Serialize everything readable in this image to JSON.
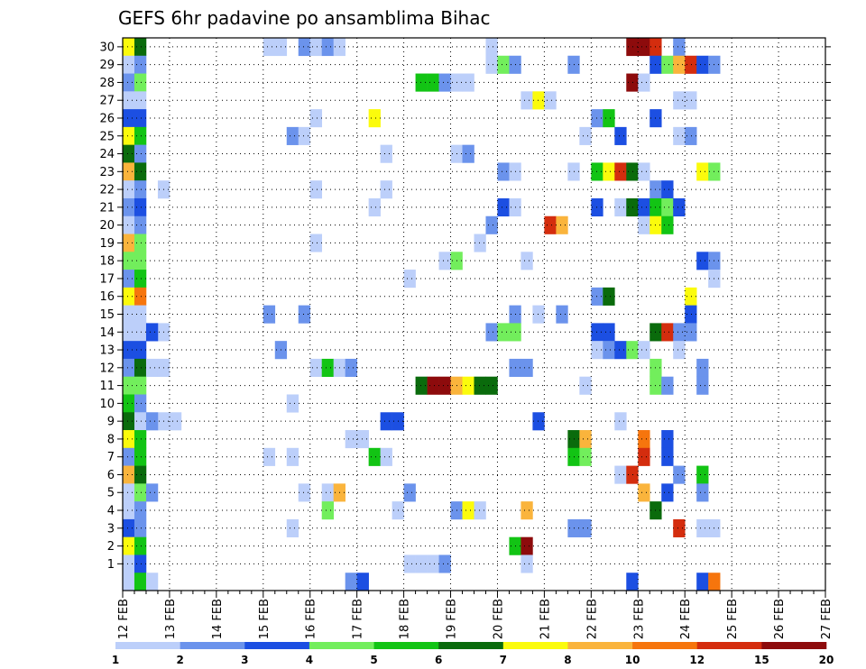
{
  "chart_data": {
    "type": "heatmap",
    "title": "GEFS 6hr padavine po ansamblima Bihac",
    "xlabel": "",
    "ylabel": "",
    "x_tick_labels": [
      "12 FEB",
      "13 FEB",
      "14 FEB",
      "15 FEB",
      "16 FEB",
      "17 FEB",
      "18 FEB",
      "19 FEB",
      "20 FEB",
      "21 FEB",
      "22 FEB",
      "23 FEB",
      "24 FEB",
      "25 FEB",
      "26 FEB",
      "27 FEB"
    ],
    "y_tick_labels": [
      "1",
      "2",
      "3",
      "4",
      "5",
      "6",
      "7",
      "8",
      "9",
      "10",
      "11",
      "12",
      "13",
      "14",
      "15",
      "16",
      "17",
      "18",
      "19",
      "20",
      "21",
      "22",
      "23",
      "24",
      "25",
      "26",
      "27",
      "28",
      "29",
      "30"
    ],
    "time_steps_per_day": 4,
    "members": 30,
    "grid": true,
    "colorbar": {
      "position": "bottom",
      "labels": [
        "1",
        "2",
        "3",
        "4",
        "5",
        "6",
        "7",
        "8",
        "10",
        "12",
        "15",
        "20"
      ],
      "colors": [
        "#bccffa",
        "#6b93ec",
        "#1c4fe2",
        "#72ee5c",
        "#12c414",
        "#0a6b0c",
        "#fbfb0c",
        "#fab43c",
        "#f6750d",
        "#d42d0e",
        "#8d0b0c"
      ]
    },
    "cells": [
      {
        "t": 0,
        "m": 30,
        "c": 6
      },
      {
        "t": 0,
        "m": 29,
        "c": 0
      },
      {
        "t": 0,
        "m": 28,
        "c": 1
      },
      {
        "t": 0,
        "m": 27,
        "c": 0
      },
      {
        "t": 0,
        "m": 26,
        "c": 2
      },
      {
        "t": 0,
        "m": 25,
        "c": 6
      },
      {
        "t": 0,
        "m": 24,
        "c": 5
      },
      {
        "t": 0,
        "m": 23,
        "c": 7
      },
      {
        "t": 0,
        "m": 22,
        "c": 0
      },
      {
        "t": 0,
        "m": 21,
        "c": 1
      },
      {
        "t": 0,
        "m": 20,
        "c": 0
      },
      {
        "t": 0,
        "m": 19,
        "c": 7
      },
      {
        "t": 0,
        "m": 18,
        "c": 3
      },
      {
        "t": 0,
        "m": 17,
        "c": 1
      },
      {
        "t": 0,
        "m": 16,
        "c": 6
      },
      {
        "t": 0,
        "m": 15,
        "c": 0
      },
      {
        "t": 0,
        "m": 14,
        "c": 0
      },
      {
        "t": 0,
        "m": 13,
        "c": 2
      },
      {
        "t": 0,
        "m": 12,
        "c": 1
      },
      {
        "t": 0,
        "m": 11,
        "c": 3
      },
      {
        "t": 0,
        "m": 10,
        "c": 4
      },
      {
        "t": 0,
        "m": 9,
        "c": 5
      },
      {
        "t": 0,
        "m": 8,
        "c": 6
      },
      {
        "t": 0,
        "m": 7,
        "c": 1
      },
      {
        "t": 0,
        "m": 6,
        "c": 7
      },
      {
        "t": 0,
        "m": 5,
        "c": 0
      },
      {
        "t": 0,
        "m": 4,
        "c": 0
      },
      {
        "t": 0,
        "m": 3,
        "c": 2
      },
      {
        "t": 0,
        "m": 2,
        "c": 6
      },
      {
        "t": 0,
        "m": 1,
        "c": 0
      },
      {
        "t": 0,
        "m": 0,
        "c": 0
      },
      {
        "t": 1,
        "m": 30,
        "c": 5
      },
      {
        "t": 1,
        "m": 29,
        "c": 1
      },
      {
        "t": 1,
        "m": 28,
        "c": 3
      },
      {
        "t": 1,
        "m": 27,
        "c": 0
      },
      {
        "t": 1,
        "m": 26,
        "c": 2
      },
      {
        "t": 1,
        "m": 25,
        "c": 4
      },
      {
        "t": 1,
        "m": 24,
        "c": 1
      },
      {
        "t": 1,
        "m": 23,
        "c": 5
      },
      {
        "t": 1,
        "m": 22,
        "c": 1
      },
      {
        "t": 1,
        "m": 21,
        "c": 2
      },
      {
        "t": 1,
        "m": 20,
        "c": 1
      },
      {
        "t": 1,
        "m": 19,
        "c": 3
      },
      {
        "t": 1,
        "m": 18,
        "c": 3
      },
      {
        "t": 1,
        "m": 17,
        "c": 4
      },
      {
        "t": 1,
        "m": 16,
        "c": 8
      },
      {
        "t": 1,
        "m": 15,
        "c": 0
      },
      {
        "t": 1,
        "m": 14,
        "c": 0
      },
      {
        "t": 1,
        "m": 13,
        "c": 2
      },
      {
        "t": 1,
        "m": 12,
        "c": 5
      },
      {
        "t": 1,
        "m": 11,
        "c": 3
      },
      {
        "t": 1,
        "m": 10,
        "c": 1
      },
      {
        "t": 1,
        "m": 9,
        "c": 0
      },
      {
        "t": 1,
        "m": 8,
        "c": 4
      },
      {
        "t": 1,
        "m": 7,
        "c": 4
      },
      {
        "t": 1,
        "m": 6,
        "c": 5
      },
      {
        "t": 1,
        "m": 5,
        "c": 3
      },
      {
        "t": 1,
        "m": 4,
        "c": 1
      },
      {
        "t": 1,
        "m": 3,
        "c": 1
      },
      {
        "t": 1,
        "m": 2,
        "c": 4
      },
      {
        "t": 1,
        "m": 1,
        "c": 2
      },
      {
        "t": 1,
        "m": 0,
        "c": 4
      },
      {
        "t": 2,
        "m": 0,
        "c": 0
      },
      {
        "t": 3,
        "m": 22,
        "c": 0
      },
      {
        "t": 3,
        "m": 14,
        "c": 0
      },
      {
        "t": 3,
        "m": 9,
        "c": 0
      },
      {
        "t": 2,
        "m": 14,
        "c": 2
      },
      {
        "t": 2,
        "m": 12,
        "c": 0
      },
      {
        "t": 3,
        "m": 12,
        "c": 0
      },
      {
        "t": 2,
        "m": 9,
        "c": 1
      },
      {
        "t": 4,
        "m": 9,
        "c": 0
      },
      {
        "t": 2,
        "m": 5,
        "c": 1
      },
      {
        "t": 12,
        "m": 30,
        "c": 0
      },
      {
        "t": 13,
        "m": 30,
        "c": 0
      },
      {
        "t": 12,
        "m": 15,
        "c": 1
      },
      {
        "t": 12,
        "m": 7,
        "c": 0
      },
      {
        "t": 13,
        "m": 13,
        "c": 1
      },
      {
        "t": 14,
        "m": 25,
        "c": 1
      },
      {
        "t": 14,
        "m": 10,
        "c": 0
      },
      {
        "t": 14,
        "m": 7,
        "c": 0
      },
      {
        "t": 14,
        "m": 3,
        "c": 0
      },
      {
        "t": 15,
        "m": 30,
        "c": 1
      },
      {
        "t": 15,
        "m": 25,
        "c": 0
      },
      {
        "t": 15,
        "m": 15,
        "c": 1
      },
      {
        "t": 15,
        "m": 5,
        "c": 0
      },
      {
        "t": 16,
        "m": 30,
        "c": 0
      },
      {
        "t": 16,
        "m": 26,
        "c": 0
      },
      {
        "t": 16,
        "m": 22,
        "c": 0
      },
      {
        "t": 16,
        "m": 19,
        "c": 0
      },
      {
        "t": 16,
        "m": 12,
        "c": 0
      },
      {
        "t": 17,
        "m": 30,
        "c": 1
      },
      {
        "t": 17,
        "m": 12,
        "c": 4
      },
      {
        "t": 17,
        "m": 5,
        "c": 0
      },
      {
        "t": 17,
        "m": 4,
        "c": 3
      },
      {
        "t": 18,
        "m": 30,
        "c": 0
      },
      {
        "t": 18,
        "m": 12,
        "c": 0
      },
      {
        "t": 18,
        "m": 5,
        "c": 7
      },
      {
        "t": 19,
        "m": 12,
        "c": 1
      },
      {
        "t": 19,
        "m": 8,
        "c": 0
      },
      {
        "t": 19,
        "m": 0,
        "c": 1
      },
      {
        "t": 20,
        "m": 8,
        "c": 0
      },
      {
        "t": 20,
        "m": 0,
        "c": 2
      },
      {
        "t": 21,
        "m": 26,
        "c": 6
      },
      {
        "t": 21,
        "m": 21,
        "c": 0
      },
      {
        "t": 21,
        "m": 7,
        "c": 4
      },
      {
        "t": 22,
        "m": 24,
        "c": 0
      },
      {
        "t": 22,
        "m": 22,
        "c": 0
      },
      {
        "t": 22,
        "m": 9,
        "c": 2
      },
      {
        "t": 22,
        "m": 7,
        "c": 0
      },
      {
        "t": 23,
        "m": 9,
        "c": 2
      },
      {
        "t": 23,
        "m": 4,
        "c": 0
      },
      {
        "t": 24,
        "m": 17,
        "c": 0
      },
      {
        "t": 24,
        "m": 5,
        "c": 1
      },
      {
        "t": 24,
        "m": 1,
        "c": 0
      },
      {
        "t": 25,
        "m": 28,
        "c": 4
      },
      {
        "t": 25,
        "m": 11,
        "c": 5
      },
      {
        "t": 25,
        "m": 1,
        "c": 0
      },
      {
        "t": 26,
        "m": 28,
        "c": 4
      },
      {
        "t": 26,
        "m": 11,
        "c": 10
      },
      {
        "t": 26,
        "m": 1,
        "c": 0
      },
      {
        "t": 27,
        "m": 28,
        "c": 1
      },
      {
        "t": 27,
        "m": 18,
        "c": 0
      },
      {
        "t": 27,
        "m": 11,
        "c": 10
      },
      {
        "t": 27,
        "m": 1,
        "c": 1
      },
      {
        "t": 28,
        "m": 28,
        "c": 0
      },
      {
        "t": 28,
        "m": 24,
        "c": 0
      },
      {
        "t": 28,
        "m": 18,
        "c": 3
      },
      {
        "t": 28,
        "m": 11,
        "c": 7
      },
      {
        "t": 28,
        "m": 4,
        "c": 1
      },
      {
        "t": 29,
        "m": 28,
        "c": 0
      },
      {
        "t": 29,
        "m": 24,
        "c": 1
      },
      {
        "t": 29,
        "m": 11,
        "c": 6
      },
      {
        "t": 29,
        "m": 4,
        "c": 6
      },
      {
        "t": 30,
        "m": 19,
        "c": 0
      },
      {
        "t": 30,
        "m": 11,
        "c": 5
      },
      {
        "t": 30,
        "m": 4,
        "c": 0
      },
      {
        "t": 31,
        "m": 30,
        "c": 0
      },
      {
        "t": 31,
        "m": 29,
        "c": 0
      },
      {
        "t": 31,
        "m": 20,
        "c": 1
      },
      {
        "t": 31,
        "m": 14,
        "c": 1
      },
      {
        "t": 31,
        "m": 11,
        "c": 5
      },
      {
        "t": 32,
        "m": 29,
        "c": 3
      },
      {
        "t": 32,
        "m": 23,
        "c": 1
      },
      {
        "t": 32,
        "m": 21,
        "c": 2
      },
      {
        "t": 32,
        "m": 14,
        "c": 3
      },
      {
        "t": 33,
        "m": 29,
        "c": 1
      },
      {
        "t": 33,
        "m": 23,
        "c": 0
      },
      {
        "t": 33,
        "m": 21,
        "c": 0
      },
      {
        "t": 33,
        "m": 15,
        "c": 1
      },
      {
        "t": 33,
        "m": 14,
        "c": 3
      },
      {
        "t": 33,
        "m": 12,
        "c": 1
      },
      {
        "t": 33,
        "m": 2,
        "c": 4
      },
      {
        "t": 34,
        "m": 27,
        "c": 0
      },
      {
        "t": 34,
        "m": 18,
        "c": 0
      },
      {
        "t": 34,
        "m": 12,
        "c": 1
      },
      {
        "t": 34,
        "m": 4,
        "c": 7
      },
      {
        "t": 34,
        "m": 2,
        "c": 10
      },
      {
        "t": 34,
        "m": 1,
        "c": 0
      },
      {
        "t": 35,
        "m": 27,
        "c": 6
      },
      {
        "t": 35,
        "m": 15,
        "c": 0
      },
      {
        "t": 35,
        "m": 9,
        "c": 2
      },
      {
        "t": 36,
        "m": 27,
        "c": 0
      },
      {
        "t": 36,
        "m": 20,
        "c": 9
      },
      {
        "t": 37,
        "m": 20,
        "c": 7
      },
      {
        "t": 37,
        "m": 15,
        "c": 1
      },
      {
        "t": 38,
        "m": 29,
        "c": 1
      },
      {
        "t": 38,
        "m": 23,
        "c": 0
      },
      {
        "t": 38,
        "m": 8,
        "c": 5
      },
      {
        "t": 38,
        "m": 7,
        "c": 4
      },
      {
        "t": 38,
        "m": 3,
        "c": 1
      },
      {
        "t": 39,
        "m": 25,
        "c": 0
      },
      {
        "t": 39,
        "m": 11,
        "c": 0
      },
      {
        "t": 39,
        "m": 8,
        "c": 7
      },
      {
        "t": 39,
        "m": 7,
        "c": 3
      },
      {
        "t": 39,
        "m": 3,
        "c": 1
      },
      {
        "t": 40,
        "m": 23,
        "c": 4
      },
      {
        "t": 40,
        "m": 16,
        "c": 1
      },
      {
        "t": 40,
        "m": 14,
        "c": 2
      },
      {
        "t": 40,
        "m": 13,
        "c": 0
      },
      {
        "t": 40,
        "m": 26,
        "c": 1
      },
      {
        "t": 40,
        "m": 21,
        "c": 2
      },
      {
        "t": 41,
        "m": 26,
        "c": 4
      },
      {
        "t": 41,
        "m": 23,
        "c": 6
      },
      {
        "t": 41,
        "m": 16,
        "c": 5
      },
      {
        "t": 41,
        "m": 14,
        "c": 2
      },
      {
        "t": 41,
        "m": 13,
        "c": 1
      },
      {
        "t": 42,
        "m": 23,
        "c": 9
      },
      {
        "t": 42,
        "m": 25,
        "c": 2
      },
      {
        "t": 42,
        "m": 13,
        "c": 2
      },
      {
        "t": 42,
        "m": 9,
        "c": 0
      },
      {
        "t": 42,
        "m": 6,
        "c": 0
      },
      {
        "t": 42,
        "m": 21,
        "c": 0
      },
      {
        "t": 43,
        "m": 30,
        "c": 10
      },
      {
        "t": 43,
        "m": 28,
        "c": 10
      },
      {
        "t": 43,
        "m": 23,
        "c": 5
      },
      {
        "t": 43,
        "m": 21,
        "c": 5
      },
      {
        "t": 43,
        "m": 13,
        "c": 3
      },
      {
        "t": 43,
        "m": 6,
        "c": 9
      },
      {
        "t": 43,
        "m": 0,
        "c": 2
      },
      {
        "t": 44,
        "m": 30,
        "c": 10
      },
      {
        "t": 44,
        "m": 28,
        "c": 0
      },
      {
        "t": 44,
        "m": 23,
        "c": 0
      },
      {
        "t": 44,
        "m": 21,
        "c": 2
      },
      {
        "t": 44,
        "m": 20,
        "c": 0
      },
      {
        "t": 44,
        "m": 13,
        "c": 0
      },
      {
        "t": 44,
        "m": 5,
        "c": 7
      },
      {
        "t": 44,
        "m": 8,
        "c": 8
      },
      {
        "t": 44,
        "m": 7,
        "c": 9
      },
      {
        "t": 45,
        "m": 30,
        "c": 9
      },
      {
        "t": 45,
        "m": 29,
        "c": 2
      },
      {
        "t": 45,
        "m": 26,
        "c": 2
      },
      {
        "t": 45,
        "m": 22,
        "c": 1
      },
      {
        "t": 45,
        "m": 21,
        "c": 4
      },
      {
        "t": 45,
        "m": 20,
        "c": 6
      },
      {
        "t": 45,
        "m": 14,
        "c": 5
      },
      {
        "t": 45,
        "m": 12,
        "c": 3
      },
      {
        "t": 45,
        "m": 11,
        "c": 3
      },
      {
        "t": 45,
        "m": 4,
        "c": 5
      },
      {
        "t": 46,
        "m": 29,
        "c": 3
      },
      {
        "t": 46,
        "m": 22,
        "c": 2
      },
      {
        "t": 46,
        "m": 21,
        "c": 3
      },
      {
        "t": 46,
        "m": 20,
        "c": 4
      },
      {
        "t": 46,
        "m": 14,
        "c": 9
      },
      {
        "t": 46,
        "m": 11,
        "c": 1
      },
      {
        "t": 46,
        "m": 8,
        "c": 2
      },
      {
        "t": 46,
        "m": 7,
        "c": 2
      },
      {
        "t": 46,
        "m": 5,
        "c": 2
      },
      {
        "t": 47,
        "m": 30,
        "c": 1
      },
      {
        "t": 47,
        "m": 29,
        "c": 7
      },
      {
        "t": 47,
        "m": 27,
        "c": 0
      },
      {
        "t": 47,
        "m": 25,
        "c": 0
      },
      {
        "t": 47,
        "m": 21,
        "c": 2
      },
      {
        "t": 47,
        "m": 14,
        "c": 1
      },
      {
        "t": 47,
        "m": 13,
        "c": 0
      },
      {
        "t": 47,
        "m": 6,
        "c": 1
      },
      {
        "t": 47,
        "m": 3,
        "c": 9
      },
      {
        "t": 48,
        "m": 29,
        "c": 9
      },
      {
        "t": 48,
        "m": 27,
        "c": 0
      },
      {
        "t": 48,
        "m": 25,
        "c": 1
      },
      {
        "t": 48,
        "m": 16,
        "c": 6
      },
      {
        "t": 48,
        "m": 15,
        "c": 2
      },
      {
        "t": 48,
        "m": 14,
        "c": 1
      },
      {
        "t": 49,
        "m": 29,
        "c": 2
      },
      {
        "t": 49,
        "m": 23,
        "c": 6
      },
      {
        "t": 49,
        "m": 18,
        "c": 2
      },
      {
        "t": 49,
        "m": 12,
        "c": 1
      },
      {
        "t": 49,
        "m": 11,
        "c": 1
      },
      {
        "t": 49,
        "m": 6,
        "c": 4
      },
      {
        "t": 49,
        "m": 5,
        "c": 1
      },
      {
        "t": 49,
        "m": 3,
        "c": 0
      },
      {
        "t": 49,
        "m": 0,
        "c": 2
      },
      {
        "t": 50,
        "m": 29,
        "c": 1
      },
      {
        "t": 50,
        "m": 23,
        "c": 3
      },
      {
        "t": 50,
        "m": 18,
        "c": 1
      },
      {
        "t": 50,
        "m": 17,
        "c": 0
      },
      {
        "t": 50,
        "m": 3,
        "c": 0
      },
      {
        "t": 50,
        "m": 0,
        "c": 8
      }
    ]
  }
}
